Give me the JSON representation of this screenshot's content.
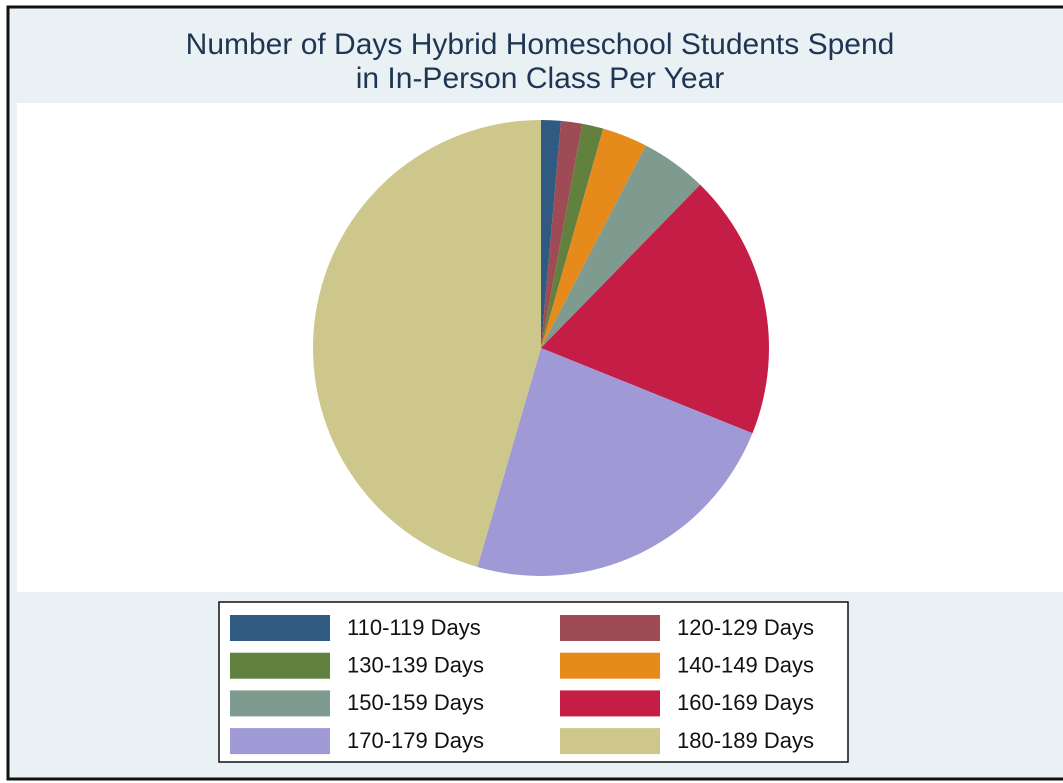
{
  "chart_data": {
    "type": "pie",
    "title": [
      "Number of Days Hybrid Homeschool Students Spend",
      "in In-Person Class Per Year"
    ],
    "categories": [
      "110-119 Days",
      "120-129 Days",
      "130-139 Days",
      "140-149 Days",
      "150-159 Days",
      "160-169 Days",
      "170-179 Days",
      "180-189 Days"
    ],
    "values": [
      1.4,
      1.5,
      1.5,
      3.2,
      4.7,
      18.8,
      23.4,
      45.5
    ],
    "colors": [
      "#2f5b82",
      "#9e4b55",
      "#62813f",
      "#e68a1c",
      "#7f9b8f",
      "#c41e47",
      "#9f99d6",
      "#cdc78b"
    ],
    "legend": "bottom"
  }
}
